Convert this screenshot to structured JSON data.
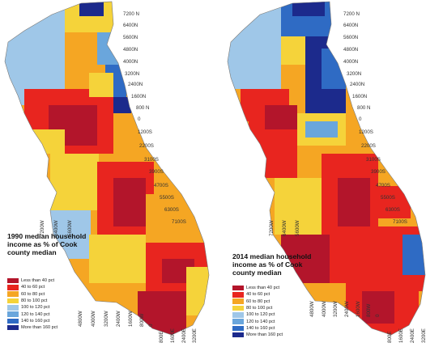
{
  "colors": {
    "less_than_40": "#b3152b",
    "40_to_60": "#e8251f",
    "60_to_80": "#f5a623",
    "80_to_100": "#f5d33a",
    "100_to_120": "#9fc7e8",
    "120_to_140": "#6aa6dc",
    "140_to_160": "#2f6bc4",
    "more_than_160": "#1c2a8c"
  },
  "legend_items": [
    {
      "label": "Less than 40 pct",
      "color": "#b3152b"
    },
    {
      "label": "40 to 60 pct",
      "color": "#e8251f"
    },
    {
      "label": "60 to 80 pct",
      "color": "#f5a623"
    },
    {
      "label": "80 to 100 pct",
      "color": "#f5d33a"
    },
    {
      "label": "100 to 120 pct",
      "color": "#9fc7e8"
    },
    {
      "label": "120 to 140 pct",
      "color": "#6aa6dc"
    },
    {
      "label": "140 to 160 pct",
      "color": "#2f6bc4"
    },
    {
      "label": "More than 160 pct",
      "color": "#1c2a8c"
    }
  ],
  "maps": [
    {
      "title": "1990 median household income as % of Cook county median",
      "north_labels": [
        "7200 N",
        "6400N",
        "5600N",
        "4800N",
        "4000N",
        "3200N",
        "2400N",
        "1600N",
        "800 N"
      ],
      "south_labels": [
        "0",
        "1200S",
        "2200S",
        "3100S",
        "3900S",
        "4700S",
        "5500S",
        "6300S",
        "7100S"
      ],
      "west_labels_top": [
        "7200W",
        "6400W",
        "5600W"
      ],
      "west_labels_bottom": [
        "4800W",
        "4000W",
        "3200W",
        "2400W",
        "1600W",
        "800W",
        "0"
      ],
      "east_labels": [
        "800E",
        "1600E",
        "2400E",
        "3200E"
      ]
    },
    {
      "title": "2014 median household income as % of Cook county median",
      "north_labels": [
        "7200 N",
        "6400N",
        "5600N",
        "4800N",
        "4000N",
        "3200N",
        "2400N",
        "1600N",
        "800 N"
      ],
      "south_labels": [
        "0",
        "1200S",
        "2200S",
        "3100S",
        "3900S",
        "4700S",
        "5500S",
        "6300S",
        "7100S"
      ],
      "west_labels_top": [
        "7200W",
        "6400W",
        "5600W"
      ],
      "west_labels_bottom": [
        "4800W",
        "4000W",
        "3200W",
        "2400W",
        "1600W",
        "800W",
        "0"
      ],
      "east_labels": [
        "800E",
        "1600E",
        "2400E",
        "3200E"
      ]
    }
  ]
}
